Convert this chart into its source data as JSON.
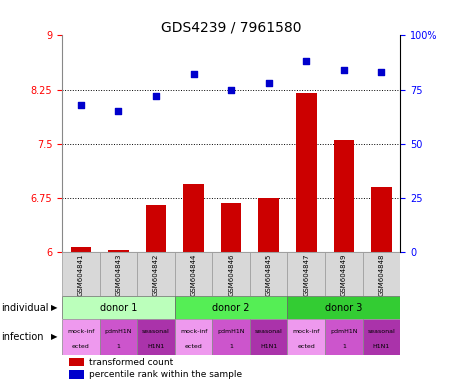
{
  "title": "GDS4239 / 7961580",
  "samples": [
    "GSM604841",
    "GSM604843",
    "GSM604842",
    "GSM604844",
    "GSM604846",
    "GSM604845",
    "GSM604847",
    "GSM604849",
    "GSM604848"
  ],
  "bar_values": [
    6.07,
    6.03,
    6.65,
    6.95,
    6.68,
    6.75,
    8.2,
    7.55,
    6.9
  ],
  "scatter_values": [
    68,
    65,
    72,
    82,
    75,
    78,
    88,
    84,
    83
  ],
  "ymin": 6,
  "ymax": 9,
  "yticks": [
    6,
    6.75,
    7.5,
    8.25,
    9
  ],
  "ytick_labels": [
    "6",
    "6.75",
    "7.5",
    "8.25",
    "9"
  ],
  "y2min": 0,
  "y2max": 100,
  "y2ticks": [
    0,
    25,
    50,
    75,
    100
  ],
  "y2tick_labels": [
    "0",
    "25",
    "50",
    "75",
    "100%"
  ],
  "hlines": [
    6.75,
    7.5,
    8.25
  ],
  "bar_color": "#cc0000",
  "scatter_color": "#0000cc",
  "bar_bottom": 6,
  "donors": [
    {
      "label": "donor 1",
      "start": 0,
      "end": 3,
      "color": "#bbffbb"
    },
    {
      "label": "donor 2",
      "start": 3,
      "end": 6,
      "color": "#55ee55"
    },
    {
      "label": "donor 3",
      "start": 6,
      "end": 9,
      "color": "#33cc33"
    }
  ],
  "infect_colors": [
    "#ee99ee",
    "#cc55cc",
    "#aa33aa"
  ],
  "infect_labels": [
    [
      "mock-inf",
      "ected"
    ],
    [
      "pdmH1N",
      "1"
    ],
    [
      "seasonal",
      "H1N1"
    ],
    [
      "mock-inf",
      "ected"
    ],
    [
      "pdmH1N",
      "1"
    ],
    [
      "seasonal",
      "H1N1"
    ],
    [
      "mock-inf",
      "ected"
    ],
    [
      "pdmH1N",
      "1"
    ],
    [
      "seasonal",
      "H1N1"
    ]
  ],
  "legend_bar_label": "transformed count",
  "legend_scatter_label": "percentile rank within the sample",
  "label_individual": "individual",
  "label_infection": "infection",
  "bg_color": "#ffffff",
  "title_fontsize": 10,
  "tick_fontsize": 7,
  "sample_fontsize": 5,
  "donor_fontsize": 7,
  "infect_fontsize": 4.5,
  "legend_fontsize": 6.5,
  "rowlabel_fontsize": 7
}
